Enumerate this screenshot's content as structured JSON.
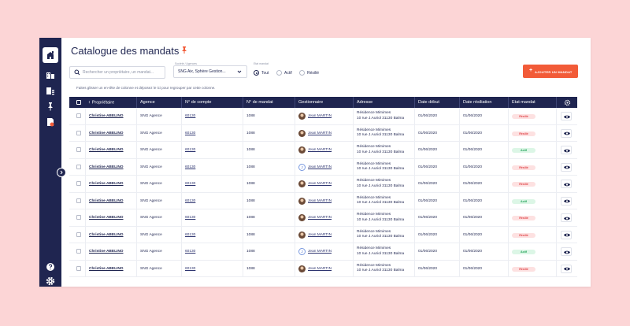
{
  "page": {
    "title": "Catalogue des mandats",
    "search_placeholder": "Rechercher un propriétaire, un mandat...",
    "filter": {
      "label": "Société / Agences",
      "value": "SNG Aix, Sphère Gestion..."
    },
    "status_filter": {
      "label": "Etat mandat",
      "options": [
        "Tout",
        "Actif",
        "Résilié"
      ],
      "selected": "Tout"
    },
    "add_button": "AJOUTER UN MANDAT",
    "group_hint": "Faites glisser un en-tête de colonne et déposez le ici pour regrouper par cette colonne."
  },
  "table": {
    "columns": [
      "Propriétaire",
      "Agence",
      "N° de compte",
      "N° de mandat",
      "Gestionnaire",
      "Adresse",
      "Date début",
      "Date résiliation",
      "Etat mandat"
    ],
    "rows": [
      {
        "owner": "Christine ABELINO",
        "agency": "SNG Agence",
        "account": "60130",
        "mandate": "1088",
        "manager": "Jean MARTIN",
        "avatar": "photo",
        "addr1": "Résidence Mimimes",
        "addr2": "10 rue J.Auriol 31130 Balma",
        "start": "01/06/2020",
        "end": "01/06/2020",
        "status": "Résilié",
        "kind": "r"
      },
      {
        "owner": "Christine ABELINO",
        "agency": "SNG Agence",
        "account": "60130",
        "mandate": "1088",
        "manager": "Jean MARTIN",
        "avatar": "photo",
        "addr1": "Résidence Mimimes",
        "addr2": "10 rue J.Auriol 31130 Balma",
        "start": "01/06/2020",
        "end": "01/06/2020",
        "status": "Résilié",
        "kind": "r"
      },
      {
        "owner": "Christine ABELINO",
        "agency": "SNG Agence",
        "account": "60130",
        "mandate": "1088",
        "manager": "Jean MARTIN",
        "avatar": "photo",
        "addr1": "Résidence Mimimes",
        "addr2": "10 rue J.Auriol 31130 Balma",
        "start": "01/06/2020",
        "end": "01/06/2020",
        "status": "Actif",
        "kind": "a"
      },
      {
        "owner": "Christine ABELINO",
        "agency": "SNG Agence",
        "account": "60130",
        "mandate": "1088",
        "manager": "Jean MARTIN",
        "avatar": "J",
        "addr1": "Résidence Mimimes",
        "addr2": "10 rue J.Auriol 31130 Balma",
        "start": "01/06/2020",
        "end": "01/06/2020",
        "status": "Résilié",
        "kind": "r"
      },
      {
        "owner": "Christine ABELINO",
        "agency": "SNG Agence",
        "account": "60130",
        "mandate": "1088",
        "manager": "Jean MARTIN",
        "avatar": "photo",
        "addr1": "Résidence Mimimes",
        "addr2": "10 rue J.Auriol 31130 Balma",
        "start": "01/06/2020",
        "end": "01/06/2020",
        "status": "Résilié",
        "kind": "r"
      },
      {
        "owner": "Christine ABELINO",
        "agency": "SNG Agence",
        "account": "60130",
        "mandate": "1088",
        "manager": "Jean MARTIN",
        "avatar": "photo",
        "addr1": "Résidence Mimimes",
        "addr2": "10 rue J.Auriol 31130 Balma",
        "start": "01/06/2020",
        "end": "01/06/2020",
        "status": "Actif",
        "kind": "a"
      },
      {
        "owner": "Christine ABELINO",
        "agency": "SNG Agence",
        "account": "60130",
        "mandate": "1088",
        "manager": "Jean MARTIN",
        "avatar": "photo",
        "addr1": "Résidence Mimimes",
        "addr2": "10 rue J.Auriol 31130 Balma",
        "start": "01/06/2020",
        "end": "01/06/2020",
        "status": "Résilié",
        "kind": "r"
      },
      {
        "owner": "Christine ABELINO",
        "agency": "SNG Agence",
        "account": "60130",
        "mandate": "1088",
        "manager": "Jean MARTIN",
        "avatar": "photo",
        "addr1": "Résidence Mimimes",
        "addr2": "10 rue J.Auriol 31130 Balma",
        "start": "01/06/2020",
        "end": "01/06/2020",
        "status": "Résilié",
        "kind": "r"
      },
      {
        "owner": "Christine ABELINO",
        "agency": "SNG Agence",
        "account": "60130",
        "mandate": "1088",
        "manager": "Jean MARTIN",
        "avatar": "J",
        "addr1": "Résidence Mimimes",
        "addr2": "10 rue J.Auriol 31130 Balma",
        "start": "01/06/2020",
        "end": "01/06/2020",
        "status": "Actif",
        "kind": "a"
      },
      {
        "owner": "Christine ABELINO",
        "agency": "SNG Agence",
        "account": "60130",
        "mandate": "1088",
        "manager": "Jean MARTIN",
        "avatar": "photo",
        "addr1": "Résidence Mimimes",
        "addr2": "10 rue J.Auriol 31130 Balma",
        "start": "01/06/2020",
        "end": "01/06/2020",
        "status": "Résilié",
        "kind": "r"
      }
    ]
  },
  "sidebar": {
    "icons": [
      "logo-icon",
      "building-icon",
      "building-list-icon",
      "pin-icon",
      "document-settings-icon",
      "help-icon",
      "settings-icon"
    ]
  },
  "colors": {
    "navy": "#1f2550",
    "accent": "#f25b38",
    "bg": "#fcd5d6",
    "active": "#24a35a",
    "terminated": "#e0464a"
  }
}
